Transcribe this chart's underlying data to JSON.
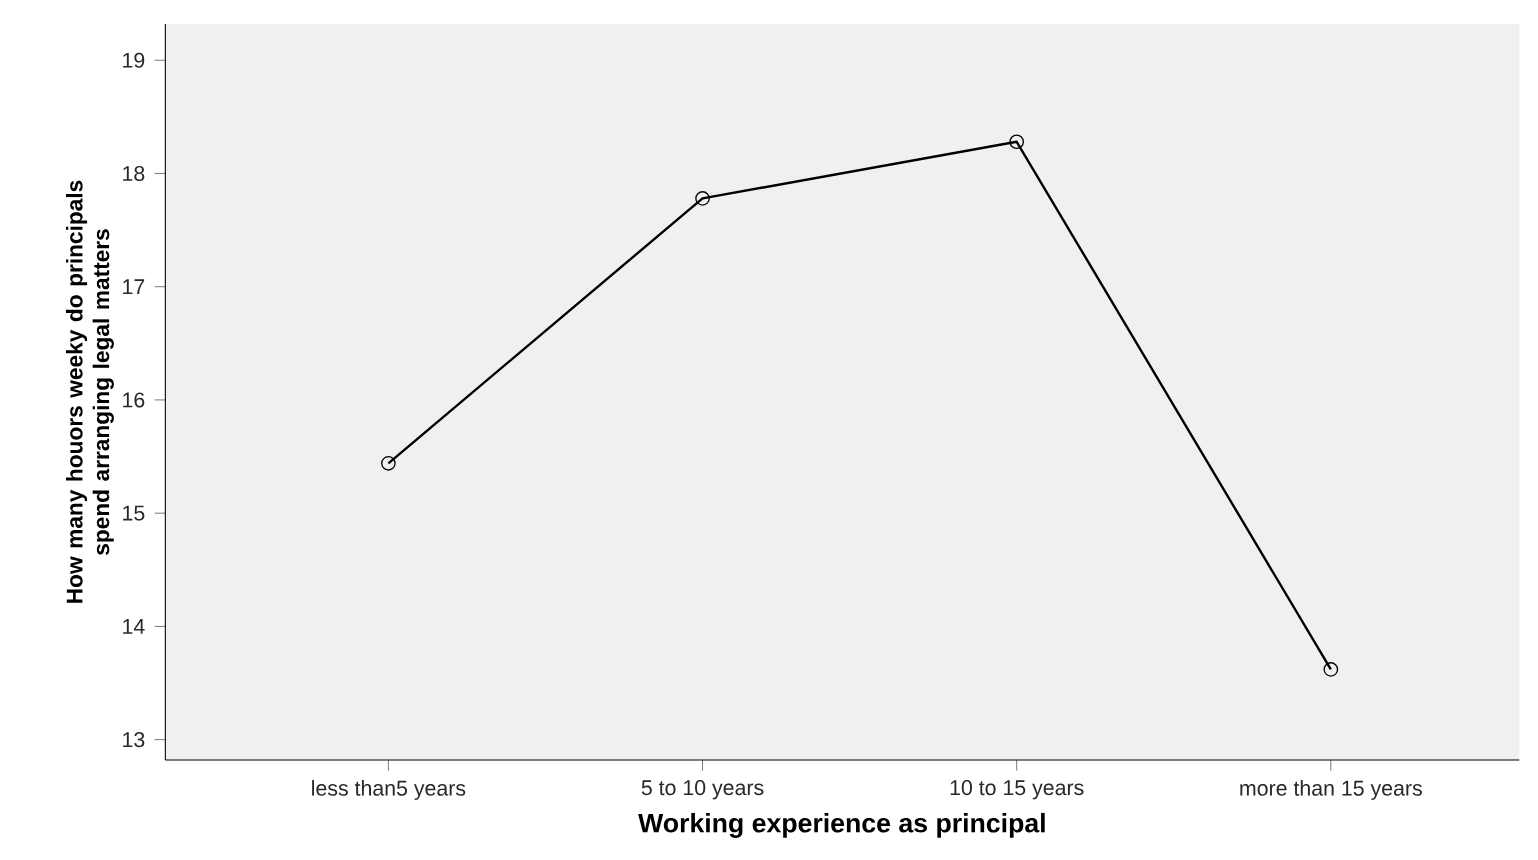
{
  "chart_data": {
    "type": "line",
    "categories": [
      "less than5 years",
      "5 to 10 years",
      "10 to 15  years",
      "more than 15 years"
    ],
    "values": [
      15.44,
      17.78,
      18.28,
      13.62
    ],
    "color": "#000000",
    "marker": "circle",
    "line_style": "solid",
    "xlabel": "Working experience as principal",
    "ylabel": "How many houors weeky do principals spend arranging legal matters",
    "ylim": [
      12.82,
      19.32
    ],
    "yticks": [
      13,
      14,
      15,
      16,
      17,
      18,
      19
    ]
  }
}
